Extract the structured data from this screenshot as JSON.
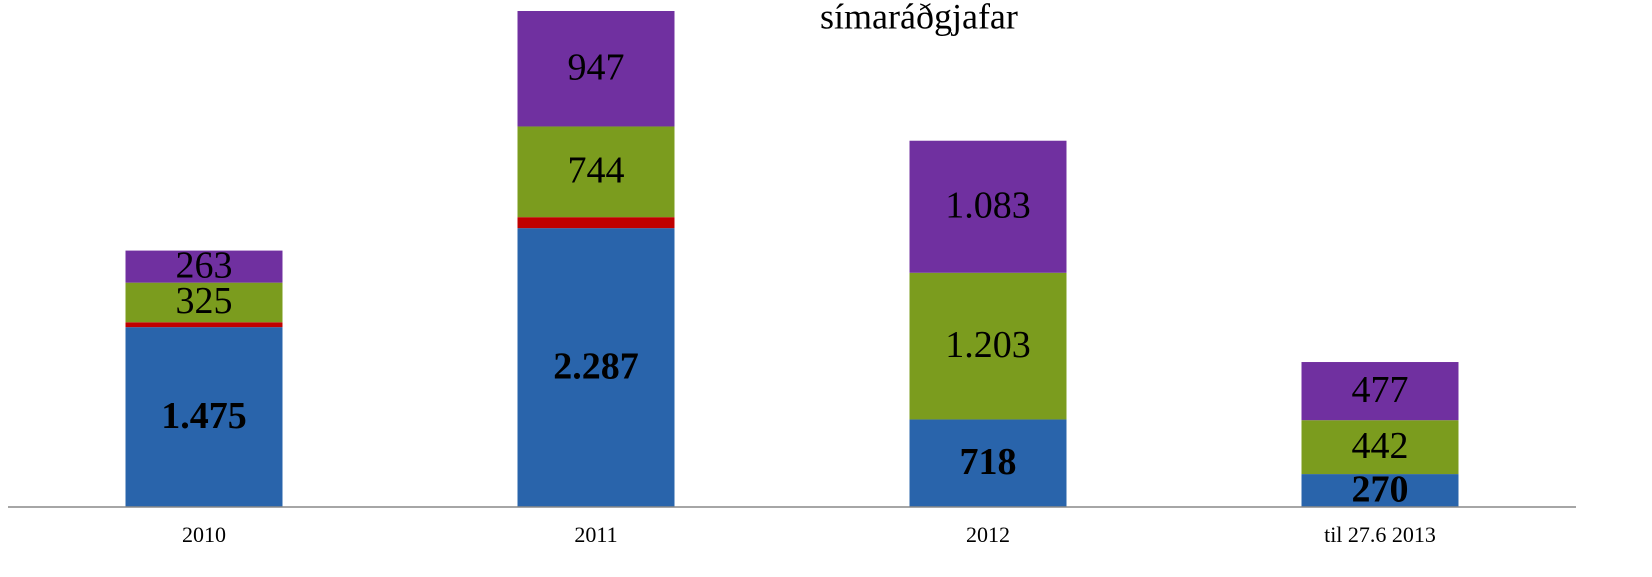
{
  "chart_data": {
    "type": "stacked_bar",
    "categories": [
      "2010",
      "2011",
      "2012",
      "til 27.6 2013"
    ],
    "series": [
      {
        "color": "#2964ab",
        "values": [
          1475,
          2287,
          718,
          270
        ],
        "value_labels": [
          "1.475",
          "2.287",
          "718",
          "270"
        ],
        "bold": true
      },
      {
        "color": "#c00000",
        "values": [
          40,
          90,
          0,
          0
        ]
      },
      {
        "color": "#7b9c1e",
        "values": [
          325,
          744,
          1203,
          442
        ],
        "value_labels": [
          "325",
          "744",
          "1.203",
          "442"
        ]
      },
      {
        "name": "símaráðgjafar",
        "color": "#7030a0",
        "values": [
          263,
          947,
          1083,
          477
        ],
        "value_labels": [
          "263",
          "947",
          "1.083",
          "477"
        ]
      }
    ],
    "ylim": [
      0,
      4150
    ]
  }
}
